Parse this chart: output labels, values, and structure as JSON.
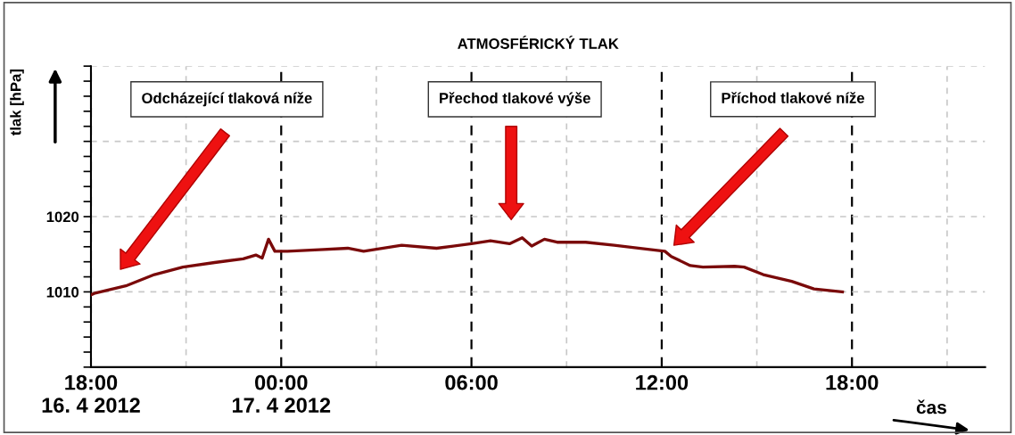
{
  "chart_data": {
    "type": "line",
    "title": "ATMOSFÉRICKÝ TLAK",
    "xlabel": "čas",
    "ylabel": "tlak [hPa]",
    "x": [
      "2012-04-16T18:00",
      "2012-04-16T18:06",
      "2012-04-16T19:06",
      "2012-04-16T20:00",
      "2012-04-16T20:54",
      "2012-04-16T21:54",
      "2012-04-16T22:48",
      "2012-04-16T23:12",
      "2012-04-16T23:24",
      "2012-04-16T23:36",
      "2012-04-16T23:48",
      "2012-04-17T00:12",
      "2012-04-17T01:12",
      "2012-04-17T02:06",
      "2012-04-17T02:36",
      "2012-04-17T03:48",
      "2012-04-17T04:54",
      "2012-04-17T06:00",
      "2012-04-17T06:36",
      "2012-04-17T07:12",
      "2012-04-17T07:36",
      "2012-04-17T07:54",
      "2012-04-17T08:18",
      "2012-04-17T08:42",
      "2012-04-17T09:36",
      "2012-04-17T10:30",
      "2012-04-17T11:30",
      "2012-04-17T12:06",
      "2012-04-17T12:18",
      "2012-04-17T12:54",
      "2012-04-17T13:18",
      "2012-04-17T14:18",
      "2012-04-17T14:36",
      "2012-04-17T15:12",
      "2012-04-17T16:06",
      "2012-04-17T16:48",
      "2012-04-17T17:42"
    ],
    "series": [
      {
        "color": "#7a0a0a",
        "values": [
          1009.6,
          1009.8,
          1010.8,
          1012.3,
          1013.3,
          1013.9,
          1014.4,
          1014.9,
          1014.5,
          1017.0,
          1015.4,
          1015.4,
          1015.6,
          1015.8,
          1015.4,
          1016.2,
          1015.8,
          1016.4,
          1016.8,
          1016.4,
          1017.2,
          1016.1,
          1017.0,
          1016.6,
          1016.6,
          1016.2,
          1015.7,
          1015.4,
          1014.7,
          1013.5,
          1013.3,
          1013.4,
          1013.3,
          1012.3,
          1011.4,
          1010.4,
          1010.0
        ]
      }
    ],
    "xlim": [
      "2012-04-16T18:00",
      "2012-04-17T22:12"
    ],
    "ylim": [
      1000,
      1040
    ],
    "xticks": [
      {
        "value": "2012-04-16T18:00",
        "label": "18:00\n16. 4 2012"
      },
      {
        "value": "2012-04-16T21:00",
        "label": null
      },
      {
        "value": "2012-04-17T00:00",
        "label": "00:00\n17. 4 2012"
      },
      {
        "value": "2012-04-17T03:00",
        "label": null
      },
      {
        "value": "2012-04-17T06:00",
        "label": "06:00"
      },
      {
        "value": "2012-04-17T09:00",
        "label": null
      },
      {
        "value": "2012-04-17T12:00",
        "label": "12:00"
      },
      {
        "value": "2012-04-17T15:00",
        "label": null
      },
      {
        "value": "2012-04-17T18:00",
        "label": "18:00"
      },
      {
        "value": "2012-04-17T21:00",
        "label": null
      }
    ],
    "yticks": [
      {
        "value": 1000,
        "label": null
      },
      1010,
      1020,
      {
        "value": 1030,
        "label": null
      },
      {
        "value": 1040,
        "label": null
      }
    ],
    "grid": true,
    "annotations": [
      "Odcházející tlaková níže",
      "Přechod tlakové výše",
      "Příchod tlakové níže"
    ]
  }
}
